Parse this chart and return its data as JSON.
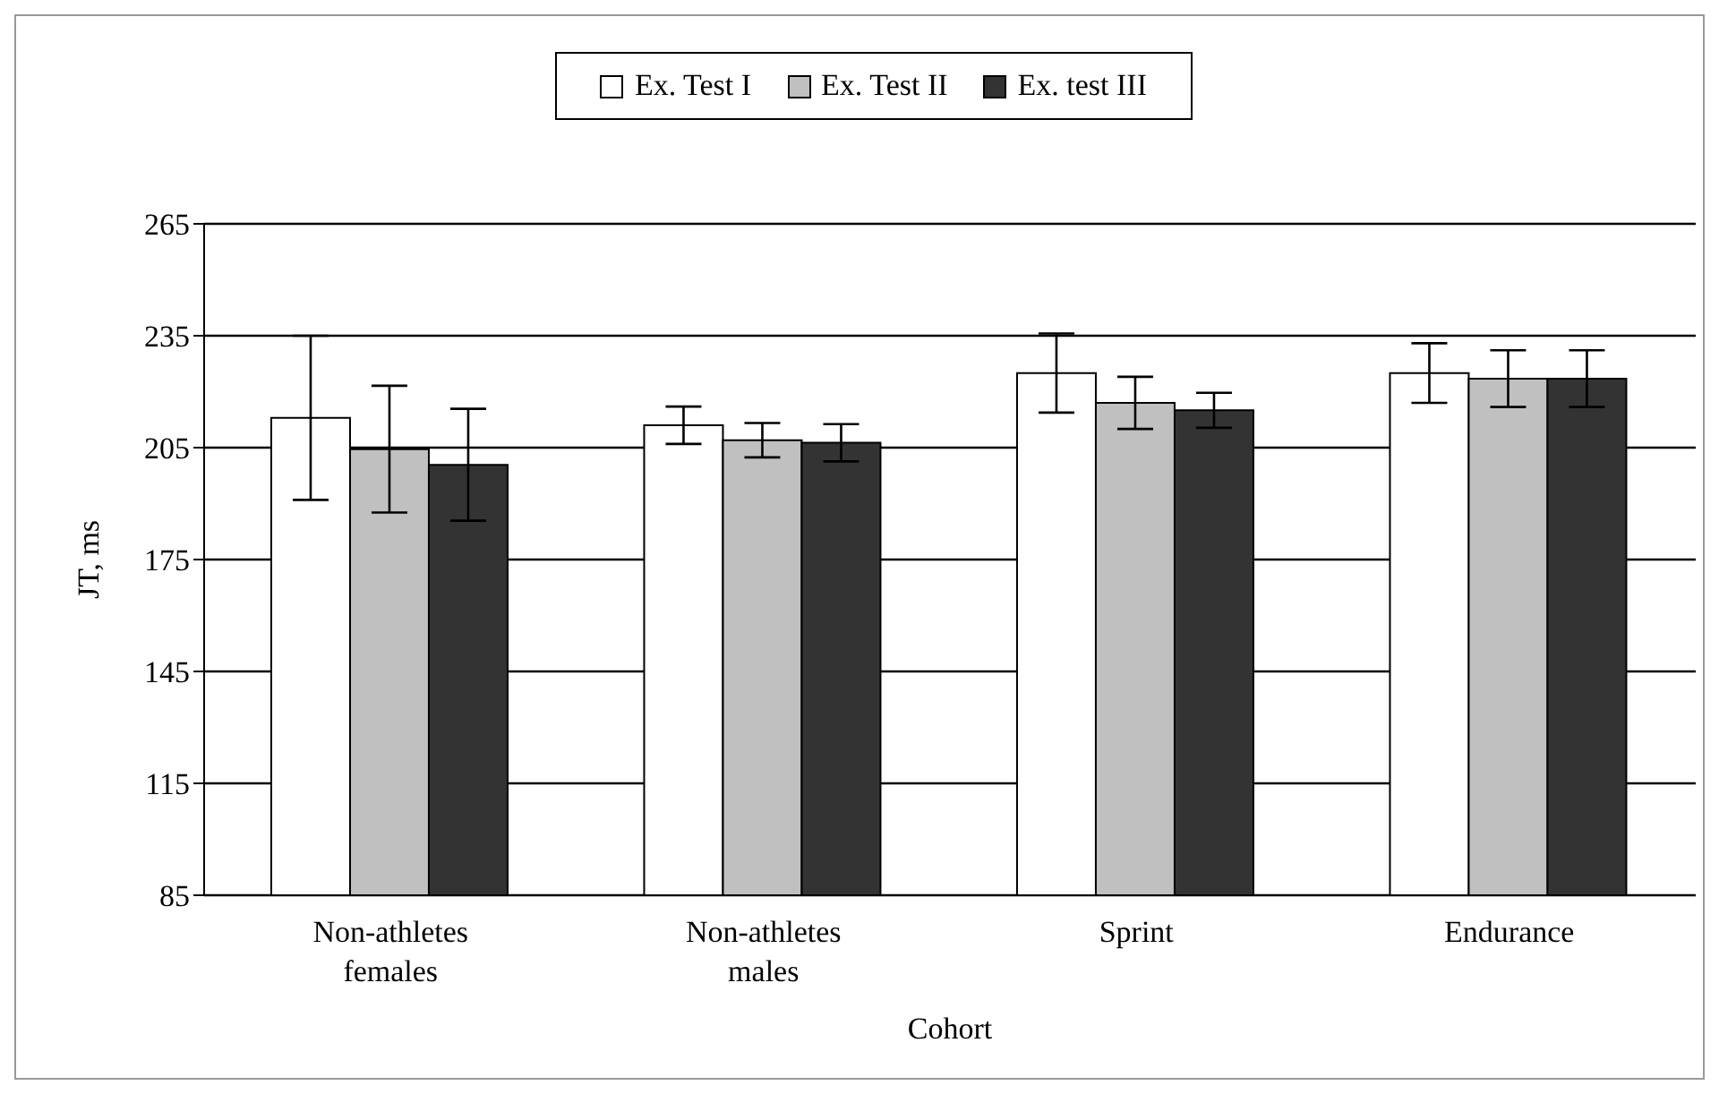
{
  "chart_data": {
    "type": "bar",
    "xlabel": "Cohort",
    "ylabel": "JT, ms",
    "categories": [
      "Non-athletes females",
      "Non-athletes males",
      "Sprint",
      "Endurance"
    ],
    "series": [
      {
        "name": "Ex. Test I",
        "color": "#ffffff",
        "values": [
          213,
          211,
          225,
          225
        ],
        "errors": [
          22,
          5,
          10.6,
          8
        ]
      },
      {
        "name": "Ex. Test II",
        "color": "#c0c0c0",
        "values": [
          204.6,
          207,
          217,
          223.5
        ],
        "errors": [
          17,
          4.6,
          7,
          7.6
        ]
      },
      {
        "name": "Ex. test III",
        "color": "#333333",
        "values": [
          200.4,
          206.3,
          215,
          223.5
        ],
        "errors": [
          15,
          5,
          4.7,
          7.6
        ]
      }
    ],
    "ylim": [
      85,
      265
    ],
    "yticks": [
      85,
      115,
      145,
      175,
      205,
      235,
      265
    ],
    "grid": "y",
    "legend": "top"
  }
}
